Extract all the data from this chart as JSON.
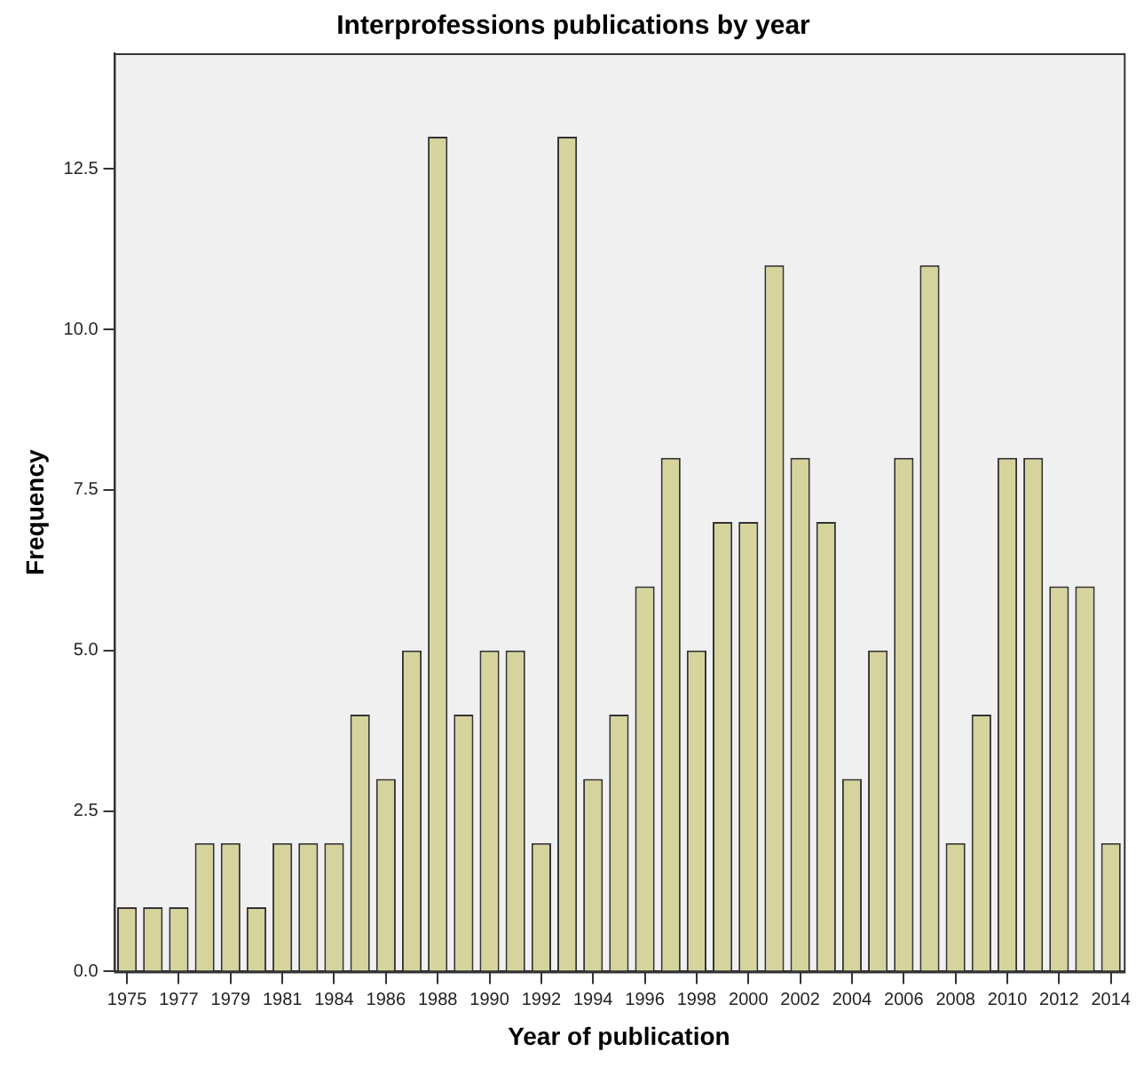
{
  "chart_data": {
    "type": "bar",
    "title": "Interprofessions publications by year",
    "xlabel": "Year of publication",
    "ylabel": "Frequency",
    "categories": [
      "1975",
      null,
      "1977",
      null,
      "1979",
      null,
      "1981",
      null,
      "1984",
      null,
      "1986",
      null,
      "1988",
      null,
      "1990",
      null,
      "1992",
      null,
      "1994",
      null,
      "1996",
      null,
      "1998",
      null,
      "2000",
      null,
      "2002",
      null,
      "2004",
      null,
      "2006",
      null,
      "2008",
      null,
      "2010",
      null,
      "2012",
      null,
      "2014"
    ],
    "values": [
      1,
      1,
      1,
      2,
      2,
      1,
      2,
      2,
      2,
      4,
      3,
      5,
      13,
      4,
      5,
      5,
      2,
      13,
      3,
      4,
      6,
      8,
      5,
      7,
      7,
      11,
      8,
      7,
      3,
      5,
      8,
      11,
      2,
      4,
      8,
      8,
      6,
      6,
      2
    ],
    "color": "#d6d49c",
    "ylim": [
      0,
      14.3
    ],
    "yticks": [
      {
        "value": 0,
        "label": "0.0"
      },
      2.5,
      {
        "value": 5,
        "label": "5.0"
      },
      7.5,
      {
        "value": 10,
        "label": "10.0"
      },
      12.5
    ],
    "grid": false,
    "legend": false
  }
}
